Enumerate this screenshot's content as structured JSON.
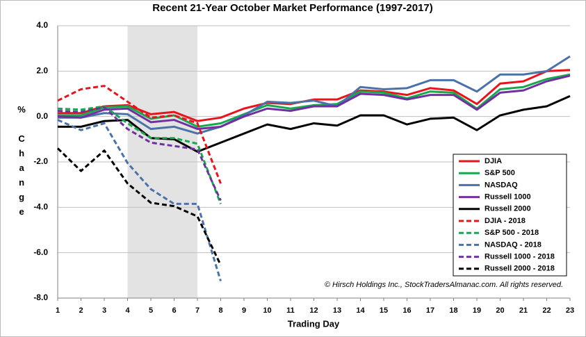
{
  "chart_data": {
    "type": "line",
    "title": "Recent 21-Year October Market Performance (1997-2017)",
    "x_label": "Trading Day",
    "y_label": "% Change",
    "annotation": "© Hirsch Holdings Inc., StockTradersAlmanac.com.  All rights reserved.",
    "shade": [
      4,
      7
    ],
    "x": [
      1,
      2,
      3,
      4,
      5,
      6,
      7,
      8,
      9,
      10,
      11,
      12,
      13,
      14,
      15,
      16,
      17,
      18,
      19,
      20,
      21,
      22,
      23
    ],
    "xlim": [
      1,
      23
    ],
    "xticks": [
      1,
      2,
      3,
      4,
      5,
      6,
      7,
      8,
      9,
      10,
      11,
      12,
      13,
      14,
      15,
      16,
      17,
      18,
      19,
      20,
      21,
      22,
      23
    ],
    "ylim": [
      -8,
      4
    ],
    "yticks": [
      {
        "value": 4,
        "label": "4.0"
      },
      {
        "value": 2,
        "label": "2.0"
      },
      {
        "value": 0,
        "label": "0.0"
      },
      {
        "value": -2,
        "label": "-2.0"
      },
      {
        "value": -4,
        "label": "-4.0"
      },
      {
        "value": -6,
        "label": "-6.0"
      },
      {
        "value": -8,
        "label": "-8.0"
      }
    ],
    "grid": true,
    "legend": "lower right",
    "series": [
      {
        "name": "DJIA",
        "color": "#e8141c",
        "dash": false,
        "values": [
          0.15,
          0.15,
          0.45,
          0.5,
          0.1,
          0.2,
          -0.2,
          -0.05,
          0.35,
          0.6,
          0.55,
          0.75,
          0.75,
          1.15,
          1.1,
          0.95,
          1.25,
          1.15,
          0.55,
          1.45,
          1.55,
          2.0,
          2.05
        ]
      },
      {
        "name": "S&P 500",
        "color": "#17a84e",
        "dash": false,
        "values": [
          0.05,
          0.05,
          0.4,
          0.45,
          -0.1,
          0.05,
          -0.45,
          -0.3,
          0.1,
          0.5,
          0.35,
          0.5,
          0.55,
          1.1,
          1.05,
          0.8,
          1.1,
          1.05,
          0.35,
          1.2,
          1.3,
          1.65,
          1.85
        ]
      },
      {
        "name": "NASDAQ",
        "color": "#4a72a8",
        "dash": false,
        "values": [
          -0.05,
          -0.05,
          0.15,
          0.1,
          -0.55,
          -0.45,
          -0.75,
          -0.45,
          0.05,
          0.65,
          0.6,
          0.7,
          0.45,
          1.3,
          1.2,
          1.25,
          1.6,
          1.6,
          1.1,
          1.85,
          1.85,
          2.0,
          2.65
        ]
      },
      {
        "name": "Russell 1000",
        "color": "#7030a0",
        "dash": false,
        "values": [
          0.0,
          -0.05,
          0.3,
          0.35,
          -0.25,
          -0.15,
          -0.55,
          -0.45,
          0.0,
          0.35,
          0.25,
          0.45,
          0.45,
          1.0,
          0.95,
          0.75,
          0.95,
          0.95,
          0.3,
          1.05,
          1.15,
          1.55,
          1.8
        ]
      },
      {
        "name": "Russell 2000",
        "color": "#000000",
        "dash": false,
        "values": [
          -0.45,
          -0.45,
          -0.2,
          -0.15,
          -0.95,
          -1.0,
          -1.55,
          -1.15,
          -0.75,
          -0.35,
          -0.55,
          -0.3,
          -0.4,
          0.05,
          0.05,
          -0.35,
          -0.1,
          -0.05,
          -0.6,
          0.05,
          0.3,
          0.45,
          0.9
        ]
      },
      {
        "name": "DJIA - 2018",
        "color": "#e8141c",
        "dash": true,
        "values": [
          0.7,
          1.2,
          1.35,
          0.65,
          -0.05,
          0.05,
          -0.3,
          -2.95,
          null,
          null,
          null,
          null,
          null,
          null,
          null,
          null,
          null,
          null,
          null,
          null,
          null,
          null,
          null
        ]
      },
      {
        "name": "S&P 500 - 2018",
        "color": "#17a84e",
        "dash": true,
        "values": [
          0.35,
          0.3,
          0.45,
          -0.3,
          -0.95,
          -0.95,
          -1.2,
          -3.85,
          null,
          null,
          null,
          null,
          null,
          null,
          null,
          null,
          null,
          null,
          null,
          null,
          null,
          null,
          null
        ]
      },
      {
        "name": "NASDAQ - 2018",
        "color": "#4a72a8",
        "dash": true,
        "values": [
          -0.15,
          -0.6,
          -0.3,
          -2.05,
          -3.2,
          -3.85,
          -3.85,
          -7.25,
          null,
          null,
          null,
          null,
          null,
          null,
          null,
          null,
          null,
          null,
          null,
          null,
          null,
          null,
          null
        ]
      },
      {
        "name": "Russell 1000 - 2018",
        "color": "#7030a0",
        "dash": true,
        "values": [
          0.25,
          0.2,
          0.4,
          -0.55,
          -1.15,
          -1.3,
          -1.45,
          -3.7,
          null,
          null,
          null,
          null,
          null,
          null,
          null,
          null,
          null,
          null,
          null,
          null,
          null,
          null,
          null
        ]
      },
      {
        "name": "Russell 2000 - 2018",
        "color": "#000000",
        "dash": true,
        "values": [
          -1.4,
          -2.4,
          -1.5,
          -2.95,
          -3.8,
          -3.95,
          -4.4,
          -6.55,
          null,
          null,
          null,
          null,
          null,
          null,
          null,
          null,
          null,
          null,
          null,
          null,
          null,
          null,
          null
        ]
      }
    ]
  }
}
